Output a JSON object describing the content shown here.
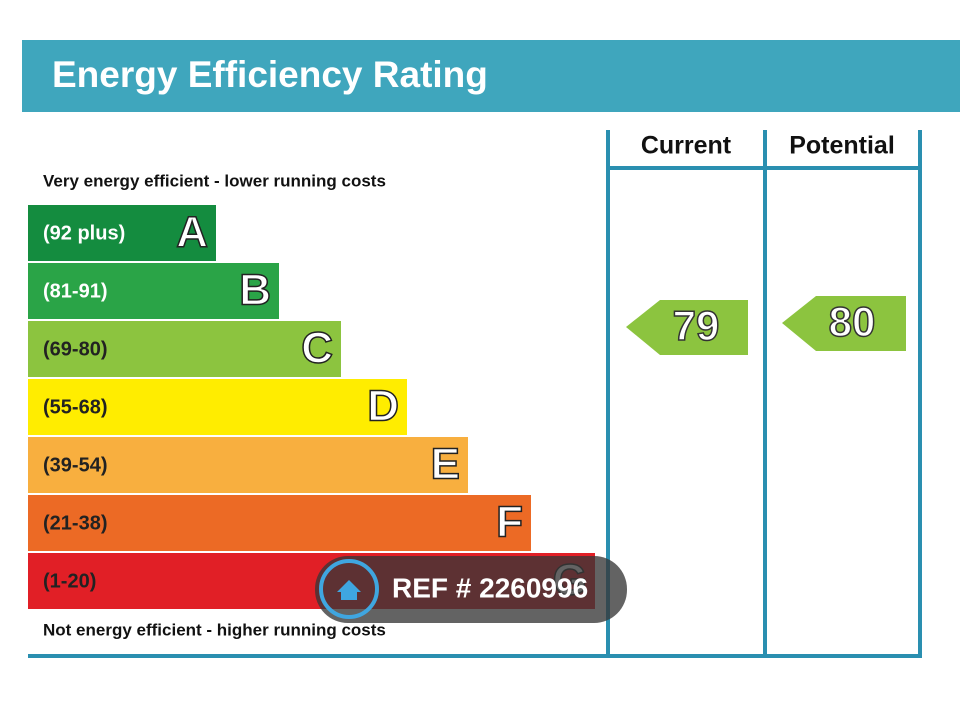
{
  "header": {
    "title": "Energy Efficiency Rating"
  },
  "top_label": "Very energy efficient - lower running costs",
  "bottom_label": "Not energy efficient - higher running costs",
  "columns": [
    "Current",
    "Potential"
  ],
  "bands": [
    {
      "range": "(92 plus)",
      "letter": "A",
      "color": "#148c3f"
    },
    {
      "range": "(81-91)",
      "letter": "B",
      "color": "#2aa447"
    },
    {
      "range": "(69-80)",
      "letter": "C",
      "color": "#8cc43f"
    },
    {
      "range": "(55-68)",
      "letter": "D",
      "color": "#ffed00"
    },
    {
      "range": "(39-54)",
      "letter": "E",
      "color": "#f8af3f"
    },
    {
      "range": "(21-38)",
      "letter": "F",
      "color": "#ec6a25"
    },
    {
      "range": "(1-20)",
      "letter": "G",
      "color": "#e11f26"
    }
  ],
  "current": {
    "value": 79,
    "color": "#8cc43f"
  },
  "potential": {
    "value": 80,
    "color": "#8cc43f"
  },
  "watermark": "REF # 2260996"
}
